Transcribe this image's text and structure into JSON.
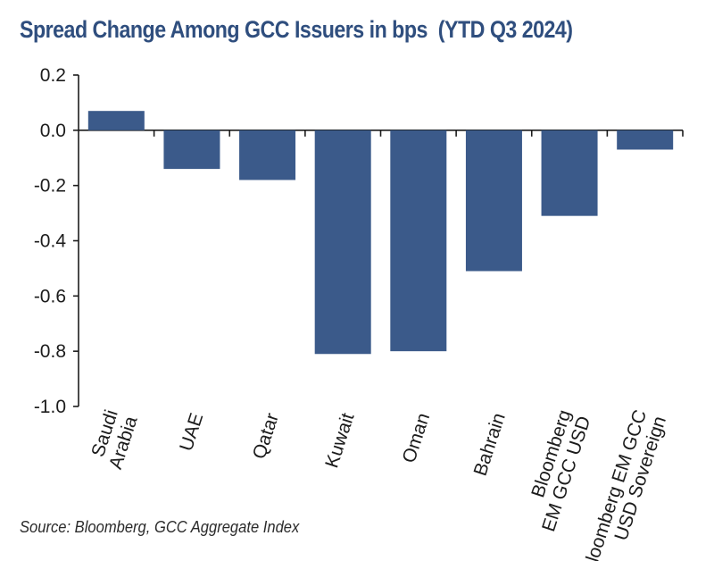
{
  "chart_data": {
    "type": "bar",
    "title": "Spread Change Among GCC Issuers in bps  (YTD Q3 2024)",
    "categories": [
      [
        "Saudi",
        "Arabia"
      ],
      [
        "UAE"
      ],
      [
        "Qatar"
      ],
      [
        "Kuwait"
      ],
      [
        "Oman"
      ],
      [
        "Bahrain"
      ],
      [
        "Bloomberg",
        "EM GCC USD"
      ],
      [
        "Bloomberg EM GCC",
        "USD Sovereign"
      ]
    ],
    "values": [
      0.07,
      -0.14,
      -0.18,
      -0.81,
      -0.8,
      -0.51,
      -0.31,
      -0.07
    ],
    "ylim": [
      -1.0,
      0.2
    ],
    "yticks": [
      0.2,
      0.0,
      -0.2,
      -0.4,
      -0.6,
      -0.8,
      -1.0
    ],
    "ytick_labels": [
      "0.2",
      "0.0",
      "-0.2",
      "-0.4",
      "-0.6",
      "-0.8",
      "-1.0"
    ],
    "xlabel": "",
    "ylabel": "",
    "bar_color": "#3b5a8a",
    "source": "Source: Bloomberg, GCC Aggregate Index"
  }
}
